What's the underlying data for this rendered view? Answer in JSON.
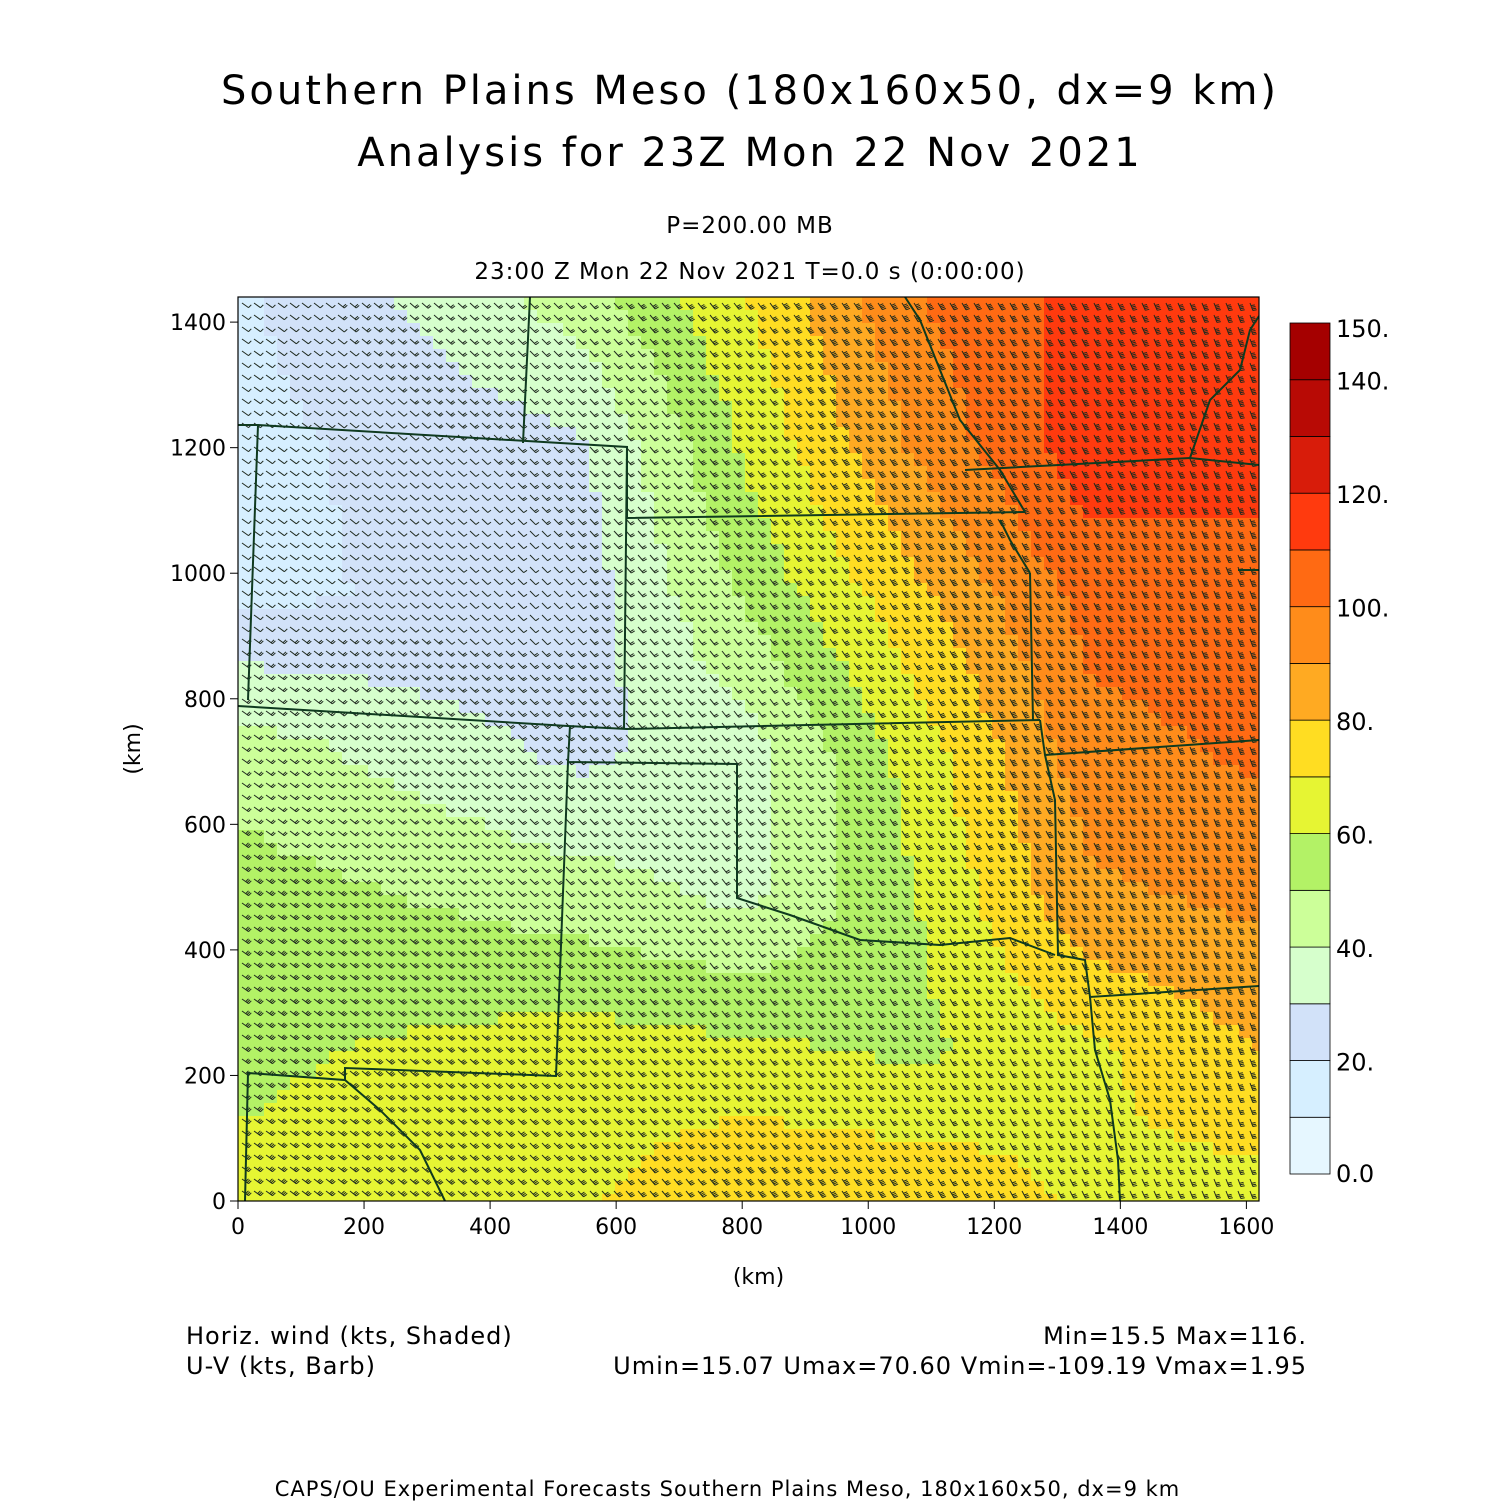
{
  "header": {
    "title_line1": "Southern Plains Meso (180x160x50, dx=9 km)",
    "title_line2": "Analysis for 23Z Mon 22 Nov 2021",
    "level": "P=200.00 MB",
    "valid_time": "23:00 Z Mon 22 Nov 2021    T=0.0 s (0:00:00)"
  },
  "footer": {
    "field1": "Horiz. wind (kts, Shaded)",
    "field2": "U-V (kts, Barb)",
    "minmax": "Min=15.5 Max=116.",
    "uv_stats": "Umin=15.07 Umax=70.60 Vmin=-109.19 Vmax=1.95",
    "credit": "CAPS/OU Experimental Forecasts  Southern Plains Meso, 180x160x50, dx=9 km"
  },
  "chart_data": {
    "type": "heatmap",
    "title": "Southern Plains Meso (180x160x50, dx=9 km)",
    "subtitle": "Analysis for 23Z Mon 22 Nov 2021",
    "xlabel": "(km)",
    "ylabel": "(km)",
    "xlim": [
      0,
      1620
    ],
    "ylim": [
      0,
      1440
    ],
    "xticks": [
      0,
      200,
      400,
      600,
      800,
      1000,
      1200,
      1400,
      1600
    ],
    "yticks": [
      0,
      200,
      400,
      600,
      800,
      1000,
      1200,
      1400
    ],
    "field": "Horiz. wind (kts, Shaded)",
    "overlay": "U-V (kts, Barb)",
    "min": 15.5,
    "max": 116,
    "colorbar": {
      "levels": [
        0,
        10,
        20,
        30,
        40,
        50,
        60,
        70,
        80,
        90,
        100,
        110,
        120,
        130,
        140,
        150
      ],
      "labels": [
        "0.0",
        "20.",
        "40.",
        "60.",
        "80.",
        "100.",
        "120.",
        "140.",
        "150."
      ],
      "colors": [
        "#e6f7ff",
        "#d6efff",
        "#d2e2f9",
        "#d6ffcc",
        "#ccff99",
        "#b3f266",
        "#e6f533",
        "#ffdd22",
        "#ffaa22",
        "#ff8c1a",
        "#ff6a13",
        "#ff3a0e",
        "#d81c0a",
        "#b80a05",
        "#a50000"
      ]
    },
    "wind_speed_samples_kts": [
      {
        "x": 0,
        "y": 1440,
        "v": 18
      },
      {
        "x": 540,
        "y": 1440,
        "v": 45
      },
      {
        "x": 810,
        "y": 1440,
        "v": 70
      },
      {
        "x": 1080,
        "y": 1440,
        "v": 100
      },
      {
        "x": 1350,
        "y": 1440,
        "v": 113
      },
      {
        "x": 1620,
        "y": 1440,
        "v": 110
      },
      {
        "x": 0,
        "y": 1200,
        "v": 17
      },
      {
        "x": 540,
        "y": 1200,
        "v": 28
      },
      {
        "x": 810,
        "y": 1200,
        "v": 62
      },
      {
        "x": 1080,
        "y": 1200,
        "v": 92
      },
      {
        "x": 1350,
        "y": 1200,
        "v": 116
      },
      {
        "x": 1620,
        "y": 1200,
        "v": 112
      },
      {
        "x": 0,
        "y": 960,
        "v": 18
      },
      {
        "x": 540,
        "y": 960,
        "v": 24
      },
      {
        "x": 810,
        "y": 960,
        "v": 52
      },
      {
        "x": 1080,
        "y": 960,
        "v": 78
      },
      {
        "x": 1350,
        "y": 960,
        "v": 104
      },
      {
        "x": 1620,
        "y": 960,
        "v": 108
      },
      {
        "x": 0,
        "y": 720,
        "v": 45
      },
      {
        "x": 540,
        "y": 720,
        "v": 27
      },
      {
        "x": 810,
        "y": 720,
        "v": 36
      },
      {
        "x": 1080,
        "y": 720,
        "v": 65
      },
      {
        "x": 1350,
        "y": 720,
        "v": 96
      },
      {
        "x": 1620,
        "y": 720,
        "v": 102
      },
      {
        "x": 0,
        "y": 480,
        "v": 55
      },
      {
        "x": 540,
        "y": 480,
        "v": 45
      },
      {
        "x": 810,
        "y": 480,
        "v": 38
      },
      {
        "x": 1080,
        "y": 480,
        "v": 60
      },
      {
        "x": 1350,
        "y": 480,
        "v": 88
      },
      {
        "x": 1620,
        "y": 480,
        "v": 92
      },
      {
        "x": 0,
        "y": 240,
        "v": 58
      },
      {
        "x": 540,
        "y": 240,
        "v": 65
      },
      {
        "x": 810,
        "y": 240,
        "v": 62
      },
      {
        "x": 1080,
        "y": 240,
        "v": 58
      },
      {
        "x": 1350,
        "y": 240,
        "v": 68
      },
      {
        "x": 1620,
        "y": 240,
        "v": 80
      },
      {
        "x": 0,
        "y": 0,
        "v": 62
      },
      {
        "x": 540,
        "y": 0,
        "v": 68
      },
      {
        "x": 810,
        "y": 0,
        "v": 80
      },
      {
        "x": 1080,
        "y": 0,
        "v": 78
      },
      {
        "x": 1350,
        "y": 0,
        "v": 68
      },
      {
        "x": 1620,
        "y": 0,
        "v": 66
      }
    ]
  }
}
